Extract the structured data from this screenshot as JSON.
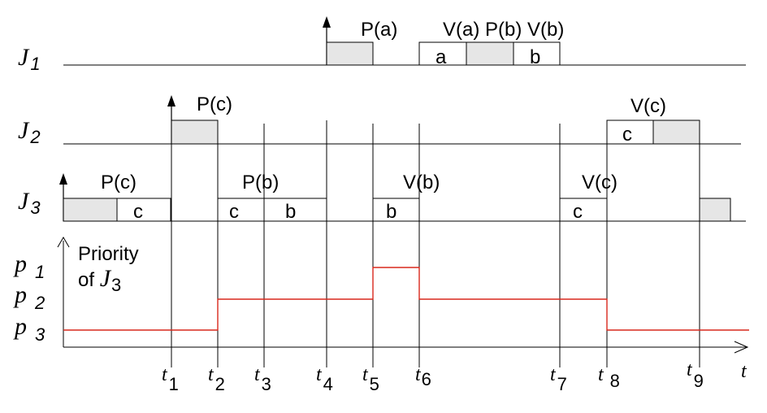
{
  "jobs": {
    "j1": {
      "letter": "J",
      "index": "1"
    },
    "j2": {
      "letter": "J",
      "index": "2"
    },
    "j3": {
      "letter": "J",
      "index": "3"
    }
  },
  "annotations": {
    "j1_pa": "P(a)",
    "j1_va_pb_vb": "V(a) P(b) V(b)",
    "j2_pc": "P(c)",
    "j2_vc": "V(c)",
    "j3_pc": "P(c)",
    "j3_pb": "P(b)",
    "j3_vb": "V(b)",
    "j3_vc": "V(c)"
  },
  "segments": {
    "j1_a": "a",
    "j1_b": "b",
    "j2_c": "c",
    "j3_c1": "c",
    "j3_c2": "c",
    "j3_b1": "b",
    "j3_b2": "b",
    "j3_c3": "c"
  },
  "priority_axis": {
    "label_line1": "Priority",
    "label_line2_prefix": "of ",
    "label_line2_letter": "J",
    "label_line2_index": "3",
    "levels": [
      {
        "letter": "p",
        "index": "1"
      },
      {
        "letter": "p",
        "index": "2"
      },
      {
        "letter": "p",
        "index": "3"
      }
    ]
  },
  "time_axis": {
    "ticks": [
      {
        "letter": "t",
        "index": "1"
      },
      {
        "letter": "t",
        "index": "2"
      },
      {
        "letter": "t",
        "index": "3"
      },
      {
        "letter": "t",
        "index": "4"
      },
      {
        "letter": "t",
        "index": "5"
      },
      {
        "letter": "t",
        "index": "6"
      },
      {
        "letter": "t",
        "index": "7"
      },
      {
        "letter": "t",
        "index": "8"
      },
      {
        "letter": "t",
        "index": "9"
      }
    ],
    "end_label": "t"
  },
  "colors": {
    "priority_line": "#d8281d",
    "grey_fill": "#e6e6e6"
  }
}
